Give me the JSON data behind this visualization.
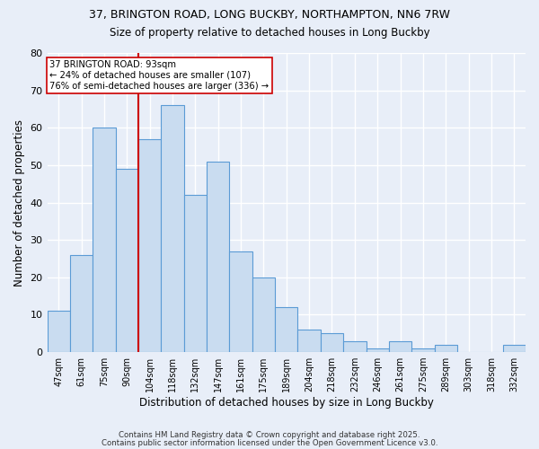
{
  "title1": "37, BRINGTON ROAD, LONG BUCKBY, NORTHAMPTON, NN6 7RW",
  "title2": "Size of property relative to detached houses in Long Buckby",
  "xlabel": "Distribution of detached houses by size in Long Buckby",
  "ylabel": "Number of detached properties",
  "categories": [
    "47sqm",
    "61sqm",
    "75sqm",
    "90sqm",
    "104sqm",
    "118sqm",
    "132sqm",
    "147sqm",
    "161sqm",
    "175sqm",
    "189sqm",
    "204sqm",
    "218sqm",
    "232sqm",
    "246sqm",
    "261sqm",
    "275sqm",
    "289sqm",
    "303sqm",
    "318sqm",
    "332sqm"
  ],
  "bar_heights": [
    11,
    26,
    60,
    49,
    57,
    66,
    42,
    51,
    27,
    20,
    12,
    6,
    5,
    3,
    1,
    3,
    1,
    2,
    0,
    0,
    2
  ],
  "bar_colors_fill": "#c9dcf0",
  "bar_edge_color": "#5b9bd5",
  "vline_color": "#cc0000",
  "annotation_text": "37 BRINGTON ROAD: 93sqm\n← 24% of detached houses are smaller (107)\n76% of semi-detached houses are larger (336) →",
  "annotation_box_color": "white",
  "annotation_border_color": "#cc0000",
  "footer1": "Contains HM Land Registry data © Crown copyright and database right 2025.",
  "footer2": "Contains public sector information licensed under the Open Government Licence v3.0.",
  "ylim": [
    0,
    80
  ],
  "yticks": [
    0,
    10,
    20,
    30,
    40,
    50,
    60,
    70,
    80
  ],
  "bg_color": "#e8eef8",
  "plot_bg_color": "#e8eef8",
  "grid_color": "white"
}
